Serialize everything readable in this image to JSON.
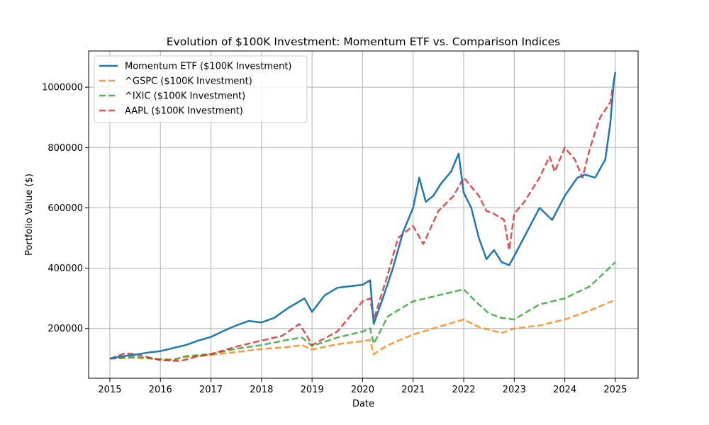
{
  "chart_data": {
    "type": "line",
    "title": "Evolution of $100K Investment: Momentum ETF vs. Comparison Indices",
    "xlabel": "Date",
    "ylabel": "Portfolio Value ($)",
    "xlim": [
      2014.58,
      2025.45
    ],
    "ylim": [
      35000,
      1120000
    ],
    "x_ticks": [
      "2015",
      "2016",
      "2017",
      "2018",
      "2019",
      "2020",
      "2021",
      "2022",
      "2023",
      "2024",
      "2025"
    ],
    "y_ticks": [
      200000,
      400000,
      600000,
      800000,
      1000000
    ],
    "y_tick_labels": [
      "200000",
      "400000",
      "600000",
      "800000",
      "1000000"
    ],
    "grid": true,
    "legend_position": "top-left",
    "series": [
      {
        "name": "Momentum ETF ($100K Investment)",
        "color": "#1f77b4",
        "style": "solid",
        "x": [
          2015.0,
          2015.25,
          2015.5,
          2015.75,
          2016.0,
          2016.2,
          2016.5,
          2016.75,
          2017.0,
          2017.25,
          2017.5,
          2017.75,
          2018.0,
          2018.25,
          2018.5,
          2018.75,
          2018.85,
          2019.0,
          2019.25,
          2019.5,
          2019.75,
          2020.0,
          2020.15,
          2020.22,
          2020.4,
          2020.6,
          2020.8,
          2021.0,
          2021.12,
          2021.25,
          2021.4,
          2021.55,
          2021.75,
          2021.9,
          2022.0,
          2022.15,
          2022.3,
          2022.45,
          2022.6,
          2022.75,
          2022.9,
          2023.0,
          2023.25,
          2023.5,
          2023.75,
          2024.0,
          2024.25,
          2024.4,
          2024.6,
          2024.8,
          2024.9,
          2024.97,
          2025.0
        ],
        "values": [
          100000,
          108000,
          113000,
          120000,
          125000,
          133000,
          145000,
          160000,
          172000,
          192000,
          210000,
          225000,
          220000,
          235000,
          265000,
          290000,
          300000,
          255000,
          310000,
          335000,
          340000,
          345000,
          360000,
          215000,
          300000,
          400000,
          520000,
          600000,
          700000,
          620000,
          640000,
          680000,
          720000,
          780000,
          650000,
          600000,
          500000,
          430000,
          460000,
          420000,
          410000,
          440000,
          520000,
          600000,
          560000,
          640000,
          700000,
          710000,
          700000,
          760000,
          880000,
          1020000,
          1050000
        ]
      },
      {
        "name": "^GSPC ($100K Investment)",
        "color": "#ff7f0e",
        "style": "dashed",
        "x": [
          2015.0,
          2015.5,
          2016.0,
          2016.25,
          2016.5,
          2017.0,
          2017.5,
          2018.0,
          2018.5,
          2018.8,
          2019.0,
          2019.5,
          2020.0,
          2020.15,
          2020.22,
          2020.5,
          2021.0,
          2021.5,
          2022.0,
          2022.3,
          2022.75,
          2023.0,
          2023.5,
          2024.0,
          2024.5,
          2025.0
        ],
        "values": [
          100000,
          103000,
          98000,
          97000,
          106000,
          112000,
          122000,
          132000,
          138000,
          145000,
          130000,
          148000,
          158000,
          162000,
          115000,
          145000,
          180000,
          205000,
          230000,
          205000,
          185000,
          200000,
          210000,
          230000,
          260000,
          295000
        ]
      },
      {
        "name": "^IXIC ($100K Investment)",
        "color": "#2ca02c",
        "style": "dashed",
        "x": [
          2015.0,
          2015.5,
          2016.0,
          2016.25,
          2016.5,
          2017.0,
          2017.5,
          2018.0,
          2018.5,
          2018.8,
          2019.0,
          2019.5,
          2020.0,
          2020.15,
          2020.22,
          2020.5,
          2021.0,
          2021.5,
          2022.0,
          2022.3,
          2022.5,
          2022.75,
          2023.0,
          2023.5,
          2024.0,
          2024.5,
          2025.0
        ],
        "values": [
          100000,
          106000,
          98000,
          95000,
          108000,
          115000,
          133000,
          145000,
          162000,
          170000,
          142000,
          170000,
          190000,
          200000,
          150000,
          240000,
          290000,
          310000,
          330000,
          280000,
          250000,
          235000,
          230000,
          280000,
          300000,
          340000,
          420000
        ]
      },
      {
        "name": "AAPL ($100K Investment)",
        "color": "#d62728",
        "style": "dashed",
        "x": [
          2015.0,
          2015.3,
          2015.5,
          2016.0,
          2016.4,
          2016.75,
          2017.0,
          2017.5,
          2018.0,
          2018.4,
          2018.75,
          2018.9,
          2019.0,
          2019.5,
          2020.0,
          2020.15,
          2020.22,
          2020.5,
          2020.7,
          2021.0,
          2021.2,
          2021.5,
          2021.8,
          2022.0,
          2022.3,
          2022.45,
          2022.6,
          2022.8,
          2022.9,
          2023.0,
          2023.2,
          2023.5,
          2023.7,
          2023.8,
          2024.0,
          2024.2,
          2024.35,
          2024.5,
          2024.7,
          2024.9,
          2025.0
        ],
        "values": [
          100000,
          118000,
          115000,
          95000,
          92000,
          108000,
          115000,
          140000,
          160000,
          175000,
          215000,
          175000,
          145000,
          190000,
          290000,
          300000,
          230000,
          380000,
          500000,
          540000,
          480000,
          590000,
          640000,
          700000,
          640000,
          590000,
          580000,
          560000,
          460000,
          580000,
          620000,
          700000,
          770000,
          720000,
          800000,
          760000,
          700000,
          800000,
          900000,
          950000,
          1050000
        ]
      }
    ]
  }
}
